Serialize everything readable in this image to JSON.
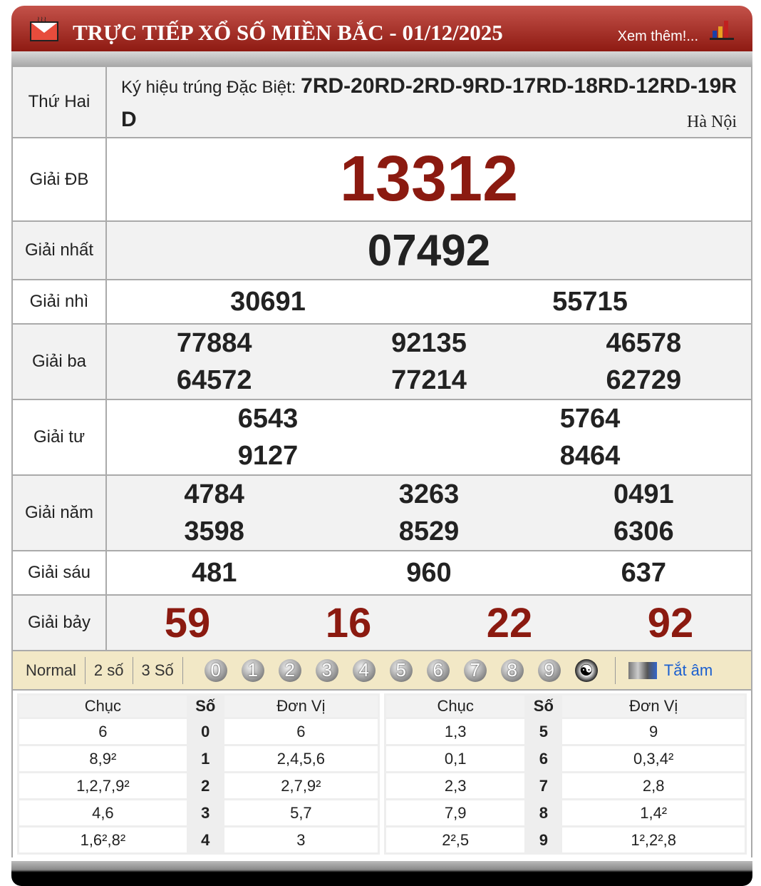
{
  "header": {
    "title": "TRỰC TIẾP XỔ SỐ MIỀN BẮC - 01/12/2025",
    "more": "Xem thêm!...",
    "colors": {
      "bar": "#a3271d",
      "number_red": "#8b1a10"
    }
  },
  "info": {
    "day": "Thứ Hai",
    "code_label": "Ký hiệu trúng Đặc Biệt: ",
    "codes": "7RD-20RD-2RD-9RD-17RD-18RD-12RD-19RD",
    "location": "Hà Nội"
  },
  "prizes": [
    {
      "label": "Giải ĐB",
      "numbers": [
        "13312"
      ]
    },
    {
      "label": "Giải nhất",
      "numbers": [
        "07492"
      ]
    },
    {
      "label": "Giải nhì",
      "numbers": [
        "30691",
        "55715"
      ]
    },
    {
      "label": "Giải ba",
      "numbers": [
        "77884",
        "92135",
        "46578",
        "64572",
        "77214",
        "62729"
      ]
    },
    {
      "label": "Giải tư",
      "numbers": [
        "6543",
        "5764",
        "9127",
        "8464"
      ]
    },
    {
      "label": "Giải năm",
      "numbers": [
        "4784",
        "3263",
        "0491",
        "3598",
        "8529",
        "6306"
      ]
    },
    {
      "label": "Giải sáu",
      "numbers": [
        "481",
        "960",
        "637"
      ]
    },
    {
      "label": "Giải bảy",
      "numbers": [
        "59",
        "16",
        "22",
        "92"
      ]
    }
  ],
  "filter": {
    "modes": [
      "Normal",
      "2 số",
      "3 Số"
    ],
    "digits": [
      "0",
      "1",
      "2",
      "3",
      "4",
      "5",
      "6",
      "7",
      "8",
      "9"
    ],
    "sound": "Tắt âm"
  },
  "loto": {
    "headers": [
      "Chục",
      "Số",
      "Đơn Vị"
    ],
    "left": [
      [
        "6",
        "0",
        "6"
      ],
      [
        "8,9²",
        "1",
        "2,4,5,6"
      ],
      [
        "1,2,7,9²",
        "2",
        "2,7,9²"
      ],
      [
        "4,6",
        "3",
        "5,7"
      ],
      [
        "1,6²,8²",
        "4",
        "3"
      ]
    ],
    "right": [
      [
        "1,3",
        "5",
        "9"
      ],
      [
        "0,1",
        "6",
        "0,3,4²"
      ],
      [
        "2,3",
        "7",
        "2,8"
      ],
      [
        "7,9",
        "8",
        "1,4²"
      ],
      [
        "2²,5",
        "9",
        "1²,2²,8"
      ]
    ]
  }
}
